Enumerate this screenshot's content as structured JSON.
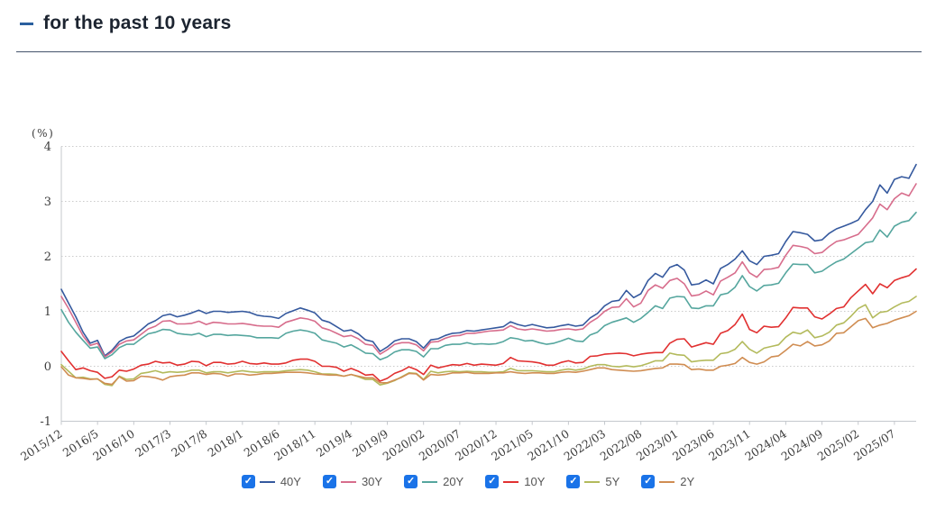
{
  "header": {
    "marker": "—",
    "title": "for the past 10 years"
  },
  "chart_data": {
    "type": "line",
    "title": "for the past 10 years",
    "unit_label": "(%)",
    "ylim": [
      -1,
      4
    ],
    "yticks": [
      4,
      3,
      2,
      1,
      0,
      -1
    ],
    "grid": "dotted horizontal gridlines at integer values",
    "legend_position": "bottom",
    "x_frequency": "monthly",
    "x_start": "2015/12",
    "x_end": "2025/10",
    "x_tick_every_n_points": 5,
    "x_tick_labels": [
      "2015/12",
      "2016/5",
      "2016/10",
      "2017/3",
      "2017/8",
      "2018/1",
      "2018/6",
      "2018/11",
      "2019/4",
      "2019/9",
      "2020/02",
      "2020/07",
      "2020/12",
      "2021/05",
      "2021/10",
      "2022/03",
      "2022/08",
      "2023/01",
      "2023/06",
      "2023/11",
      "2024/04",
      "2024/09",
      "2025/02",
      "2025/07"
    ],
    "series": [
      {
        "name": "40Y",
        "color": "#35599e",
        "values": [
          1.4,
          1.15,
          0.9,
          0.62,
          0.42,
          0.47,
          0.19,
          0.29,
          0.45,
          0.52,
          0.55,
          0.66,
          0.77,
          0.83,
          0.92,
          0.95,
          0.9,
          0.93,
          0.97,
          1.02,
          0.96,
          1.0,
          1.0,
          0.98,
          0.99,
          1.0,
          0.98,
          0.93,
          0.91,
          0.9,
          0.87,
          0.96,
          1.01,
          1.06,
          1.02,
          0.97,
          0.84,
          0.8,
          0.72,
          0.64,
          0.66,
          0.59,
          0.48,
          0.45,
          0.27,
          0.35,
          0.46,
          0.5,
          0.5,
          0.45,
          0.33,
          0.48,
          0.5,
          0.56,
          0.6,
          0.61,
          0.65,
          0.64,
          0.66,
          0.68,
          0.7,
          0.72,
          0.81,
          0.76,
          0.73,
          0.76,
          0.73,
          0.7,
          0.71,
          0.74,
          0.76,
          0.73,
          0.75,
          0.88,
          0.96,
          1.1,
          1.18,
          1.2,
          1.38,
          1.25,
          1.32,
          1.56,
          1.69,
          1.62,
          1.8,
          1.85,
          1.75,
          1.48,
          1.5,
          1.57,
          1.5,
          1.78,
          1.85,
          1.95,
          2.1,
          1.92,
          1.85,
          2.0,
          2.02,
          2.05,
          2.27,
          2.45,
          2.43,
          2.4,
          2.28,
          2.3,
          2.42,
          2.5,
          2.55,
          2.6,
          2.66,
          2.85,
          3.0,
          3.3,
          3.15,
          3.4,
          3.45,
          3.42,
          3.67
        ]
      },
      {
        "name": "30Y",
        "color": "#d76d8c",
        "values": [
          1.27,
          1.05,
          0.8,
          0.55,
          0.38,
          0.42,
          0.17,
          0.26,
          0.4,
          0.46,
          0.48,
          0.58,
          0.68,
          0.73,
          0.82,
          0.83,
          0.77,
          0.77,
          0.78,
          0.82,
          0.76,
          0.8,
          0.79,
          0.77,
          0.77,
          0.78,
          0.76,
          0.74,
          0.73,
          0.73,
          0.71,
          0.8,
          0.84,
          0.88,
          0.86,
          0.82,
          0.7,
          0.66,
          0.6,
          0.54,
          0.56,
          0.5,
          0.4,
          0.38,
          0.22,
          0.3,
          0.4,
          0.43,
          0.43,
          0.39,
          0.28,
          0.44,
          0.45,
          0.51,
          0.55,
          0.56,
          0.6,
          0.6,
          0.62,
          0.64,
          0.65,
          0.66,
          0.74,
          0.68,
          0.66,
          0.68,
          0.66,
          0.64,
          0.65,
          0.67,
          0.68,
          0.66,
          0.68,
          0.8,
          0.88,
          1.0,
          1.07,
          1.08,
          1.23,
          1.08,
          1.15,
          1.38,
          1.48,
          1.42,
          1.56,
          1.6,
          1.5,
          1.28,
          1.3,
          1.37,
          1.3,
          1.55,
          1.62,
          1.7,
          1.9,
          1.7,
          1.62,
          1.76,
          1.77,
          1.8,
          2.02,
          2.2,
          2.18,
          2.15,
          2.05,
          2.07,
          2.18,
          2.27,
          2.3,
          2.35,
          2.4,
          2.55,
          2.7,
          2.95,
          2.85,
          3.05,
          3.15,
          3.1,
          3.32
        ]
      },
      {
        "name": "20Y",
        "color": "#55a69e",
        "values": [
          1.03,
          0.8,
          0.62,
          0.47,
          0.33,
          0.35,
          0.14,
          0.21,
          0.34,
          0.4,
          0.4,
          0.5,
          0.59,
          0.62,
          0.67,
          0.66,
          0.6,
          0.58,
          0.57,
          0.6,
          0.54,
          0.58,
          0.58,
          0.56,
          0.57,
          0.56,
          0.55,
          0.52,
          0.52,
          0.52,
          0.51,
          0.6,
          0.64,
          0.66,
          0.64,
          0.6,
          0.48,
          0.45,
          0.42,
          0.35,
          0.39,
          0.32,
          0.24,
          0.23,
          0.12,
          0.17,
          0.26,
          0.3,
          0.3,
          0.27,
          0.17,
          0.32,
          0.32,
          0.38,
          0.4,
          0.4,
          0.43,
          0.4,
          0.41,
          0.4,
          0.41,
          0.45,
          0.52,
          0.5,
          0.46,
          0.47,
          0.43,
          0.4,
          0.42,
          0.46,
          0.51,
          0.46,
          0.45,
          0.57,
          0.62,
          0.74,
          0.8,
          0.84,
          0.88,
          0.8,
          0.87,
          0.98,
          1.1,
          1.05,
          1.24,
          1.27,
          1.26,
          1.06,
          1.05,
          1.1,
          1.1,
          1.3,
          1.33,
          1.44,
          1.65,
          1.45,
          1.37,
          1.47,
          1.48,
          1.51,
          1.7,
          1.86,
          1.85,
          1.85,
          1.7,
          1.73,
          1.82,
          1.9,
          1.95,
          2.05,
          2.15,
          2.25,
          2.27,
          2.48,
          2.35,
          2.55,
          2.62,
          2.65,
          2.8
        ]
      },
      {
        "name": "10Y",
        "color": "#e13030",
        "values": [
          0.27,
          0.1,
          -0.06,
          -0.03,
          -0.08,
          -0.11,
          -0.22,
          -0.19,
          -0.07,
          -0.09,
          -0.05,
          0.02,
          0.04,
          0.09,
          0.06,
          0.07,
          0.02,
          0.04,
          0.09,
          0.08,
          0.01,
          0.07,
          0.07,
          0.04,
          0.05,
          0.09,
          0.05,
          0.04,
          0.06,
          0.04,
          0.04,
          0.06,
          0.11,
          0.13,
          0.13,
          0.09,
          0.0,
          0.0,
          -0.02,
          -0.09,
          -0.04,
          -0.09,
          -0.16,
          -0.15,
          -0.27,
          -0.22,
          -0.13,
          -0.08,
          -0.01,
          -0.06,
          -0.15,
          0.02,
          -0.03,
          0.0,
          0.03,
          0.02,
          0.05,
          0.02,
          0.04,
          0.03,
          0.02,
          0.05,
          0.16,
          0.1,
          0.09,
          0.08,
          0.06,
          0.02,
          0.02,
          0.07,
          0.1,
          0.06,
          0.07,
          0.18,
          0.19,
          0.22,
          0.23,
          0.24,
          0.23,
          0.19,
          0.22,
          0.24,
          0.25,
          0.25,
          0.42,
          0.49,
          0.5,
          0.35,
          0.39,
          0.43,
          0.4,
          0.6,
          0.65,
          0.76,
          0.95,
          0.67,
          0.61,
          0.73,
          0.71,
          0.72,
          0.88,
          1.07,
          1.06,
          1.06,
          0.9,
          0.86,
          0.95,
          1.05,
          1.08,
          1.25,
          1.37,
          1.49,
          1.32,
          1.5,
          1.43,
          1.56,
          1.61,
          1.65,
          1.77
        ]
      },
      {
        "name": "5Y",
        "color": "#b3ba5c",
        "values": [
          0.03,
          -0.09,
          -0.21,
          -0.2,
          -0.23,
          -0.23,
          -0.33,
          -0.35,
          -0.18,
          -0.24,
          -0.23,
          -0.13,
          -0.11,
          -0.08,
          -0.12,
          -0.1,
          -0.11,
          -0.1,
          -0.07,
          -0.07,
          -0.12,
          -0.1,
          -0.1,
          -0.12,
          -0.1,
          -0.08,
          -0.1,
          -0.11,
          -0.1,
          -0.1,
          -0.1,
          -0.08,
          -0.07,
          -0.06,
          -0.07,
          -0.1,
          -0.14,
          -0.14,
          -0.15,
          -0.18,
          -0.15,
          -0.19,
          -0.24,
          -0.24,
          -0.34,
          -0.31,
          -0.26,
          -0.19,
          -0.12,
          -0.13,
          -0.24,
          -0.09,
          -0.12,
          -0.1,
          -0.09,
          -0.1,
          -0.09,
          -0.1,
          -0.1,
          -0.11,
          -0.11,
          -0.1,
          -0.04,
          -0.08,
          -0.08,
          -0.08,
          -0.09,
          -0.1,
          -0.1,
          -0.07,
          -0.05,
          -0.07,
          -0.05,
          0.0,
          0.03,
          0.03,
          0.0,
          -0.01,
          0.01,
          -0.01,
          0.01,
          0.05,
          0.1,
          0.1,
          0.24,
          0.21,
          0.2,
          0.08,
          0.1,
          0.11,
          0.11,
          0.23,
          0.25,
          0.31,
          0.45,
          0.31,
          0.24,
          0.33,
          0.36,
          0.39,
          0.53,
          0.62,
          0.59,
          0.66,
          0.52,
          0.55,
          0.62,
          0.75,
          0.79,
          0.91,
          1.05,
          1.12,
          0.88,
          0.98,
          1.0,
          1.08,
          1.15,
          1.18,
          1.27
        ]
      },
      {
        "name": "2Y",
        "color": "#d08d52",
        "values": [
          -0.01,
          -0.16,
          -0.21,
          -0.22,
          -0.24,
          -0.23,
          -0.31,
          -0.33,
          -0.19,
          -0.27,
          -0.26,
          -0.18,
          -0.19,
          -0.21,
          -0.25,
          -0.19,
          -0.17,
          -0.16,
          -0.12,
          -0.12,
          -0.15,
          -0.13,
          -0.14,
          -0.18,
          -0.14,
          -0.14,
          -0.16,
          -0.15,
          -0.13,
          -0.13,
          -0.12,
          -0.11,
          -0.11,
          -0.11,
          -0.12,
          -0.14,
          -0.15,
          -0.16,
          -0.16,
          -0.18,
          -0.15,
          -0.18,
          -0.21,
          -0.21,
          -0.3,
          -0.3,
          -0.25,
          -0.2,
          -0.13,
          -0.14,
          -0.25,
          -0.15,
          -0.16,
          -0.15,
          -0.12,
          -0.12,
          -0.11,
          -0.13,
          -0.13,
          -0.13,
          -0.12,
          -0.12,
          -0.1,
          -0.12,
          -0.13,
          -0.12,
          -0.12,
          -0.13,
          -0.13,
          -0.11,
          -0.1,
          -0.11,
          -0.09,
          -0.06,
          -0.03,
          -0.03,
          -0.06,
          -0.07,
          -0.08,
          -0.09,
          -0.08,
          -0.06,
          -0.04,
          -0.03,
          0.04,
          0.04,
          0.03,
          -0.06,
          -0.05,
          -0.07,
          -0.07,
          0.0,
          0.02,
          0.05,
          0.16,
          0.07,
          0.04,
          0.08,
          0.17,
          0.19,
          0.29,
          0.4,
          0.37,
          0.45,
          0.37,
          0.39,
          0.46,
          0.6,
          0.61,
          0.72,
          0.83,
          0.87,
          0.7,
          0.75,
          0.78,
          0.84,
          0.88,
          0.92,
          1.0
        ]
      }
    ]
  },
  "legend": {
    "checkbox_color": "#1a73e8",
    "items": [
      {
        "label": "40Y",
        "checked": true
      },
      {
        "label": "30Y",
        "checked": true
      },
      {
        "label": "20Y",
        "checked": true
      },
      {
        "label": "10Y",
        "checked": true
      },
      {
        "label": "5Y",
        "checked": true
      },
      {
        "label": "2Y",
        "checked": true
      }
    ]
  }
}
